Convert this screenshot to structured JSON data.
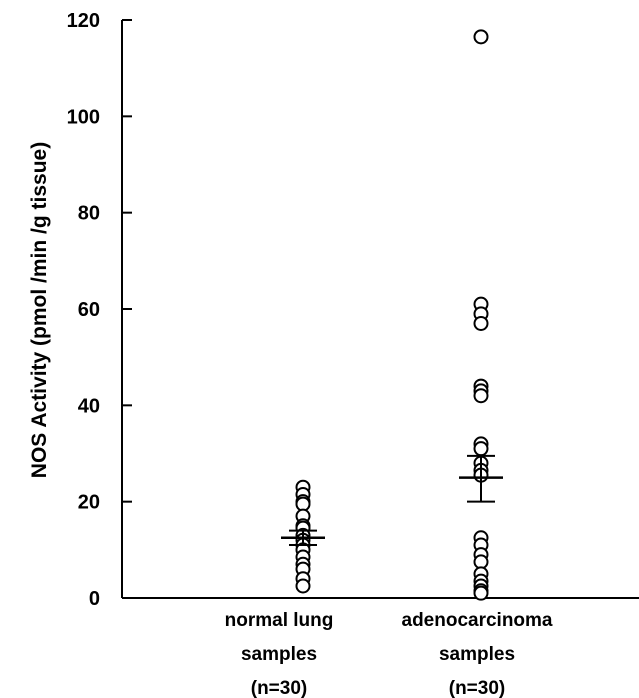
{
  "chart_data": {
    "type": "scatter",
    "ylabel": "NOS Activity (pmol /min /g tissue)",
    "ylim": [
      0,
      120
    ],
    "yticks": [
      0,
      20,
      40,
      60,
      80,
      100,
      120
    ],
    "grid": false,
    "groups": [
      {
        "label_lines": [
          "normal lung",
          "samples",
          "(n=30)"
        ],
        "values": [
          23,
          21.5,
          20,
          19.5,
          17,
          15,
          14.5,
          13,
          12,
          11,
          10,
          8.5,
          7,
          6,
          4,
          2.5
        ],
        "mean": 12.5,
        "error_low": 11,
        "error_high": 14
      },
      {
        "label_lines": [
          "adenocarcinoma",
          "samples",
          "(n=30)"
        ],
        "values": [
          116.5,
          61,
          59,
          57,
          44,
          43,
          42,
          32,
          31,
          28,
          26.5,
          25.5,
          12.5,
          11,
          9,
          7.5,
          5,
          3.5,
          2.5,
          1.5,
          1
        ],
        "mean": 25,
        "error_low": 20,
        "error_high": 29.5
      }
    ],
    "colors": {
      "axis": "#000000",
      "marker_fill": "#ffffff",
      "marker_stroke": "#000000"
    }
  }
}
